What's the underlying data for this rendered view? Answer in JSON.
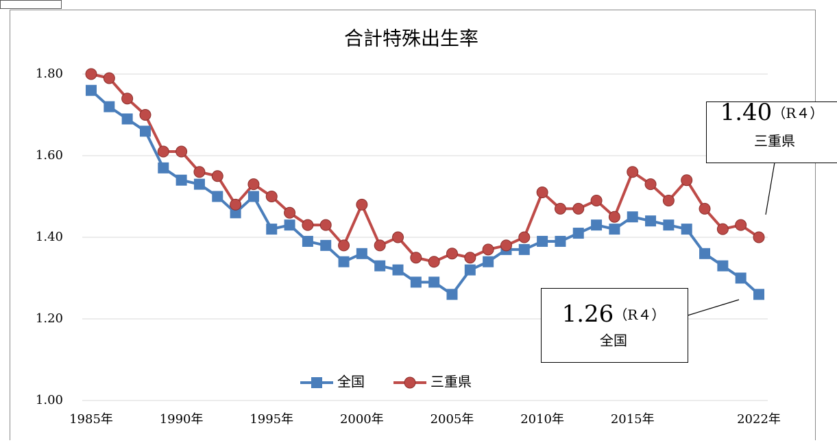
{
  "chart_data": {
    "type": "line",
    "title": "合計特殊出生率",
    "categories": [
      "1985年",
      null,
      null,
      null,
      null,
      "1990年",
      null,
      null,
      null,
      null,
      "1995年",
      null,
      null,
      null,
      null,
      "2000年",
      null,
      null,
      null,
      null,
      "2005年",
      null,
      null,
      null,
      null,
      "2010年",
      null,
      null,
      null,
      null,
      "2015年",
      null,
      null,
      null,
      null,
      null,
      null,
      "2022年"
    ],
    "series": [
      {
        "name": "全国",
        "color": "#4a7ebb",
        "marker": "square",
        "values": [
          1.76,
          1.72,
          1.69,
          1.66,
          1.57,
          1.54,
          1.53,
          1.5,
          1.46,
          1.5,
          1.42,
          1.43,
          1.39,
          1.38,
          1.34,
          1.36,
          1.33,
          1.32,
          1.29,
          1.29,
          1.26,
          1.32,
          1.34,
          1.37,
          1.37,
          1.39,
          1.39,
          1.41,
          1.43,
          1.42,
          1.45,
          1.44,
          1.43,
          1.42,
          1.36,
          1.33,
          1.3,
          1.26
        ]
      },
      {
        "name": "三重県",
        "color": "#be4b48",
        "marker": "circle",
        "values": [
          1.8,
          1.79,
          1.74,
          1.7,
          1.61,
          1.61,
          1.56,
          1.55,
          1.48,
          1.53,
          1.5,
          1.46,
          1.43,
          1.43,
          1.38,
          1.48,
          1.38,
          1.4,
          1.35,
          1.34,
          1.36,
          1.35,
          1.37,
          1.38,
          1.4,
          1.51,
          1.47,
          1.47,
          1.49,
          1.45,
          1.56,
          1.53,
          1.49,
          1.54,
          1.47,
          1.42,
          1.43,
          1.4
        ]
      }
    ],
    "ylim": [
      1.0,
      1.8
    ],
    "yticks": [
      {
        "value": 1.0,
        "label": "1.00"
      },
      {
        "value": 1.2,
        "label": "1.20"
      },
      {
        "value": 1.4,
        "label": "1.40"
      },
      {
        "value": 1.6,
        "label": "1.60"
      },
      {
        "value": 1.8,
        "label": "1.80"
      }
    ],
    "grid": true,
    "legend": "bottom",
    "annotations": [
      {
        "value_text": "1.40",
        "note": "（R４）",
        "label": "三重県"
      },
      {
        "value_text": "1.26",
        "note": "（R４）",
        "label": "全国"
      }
    ]
  }
}
